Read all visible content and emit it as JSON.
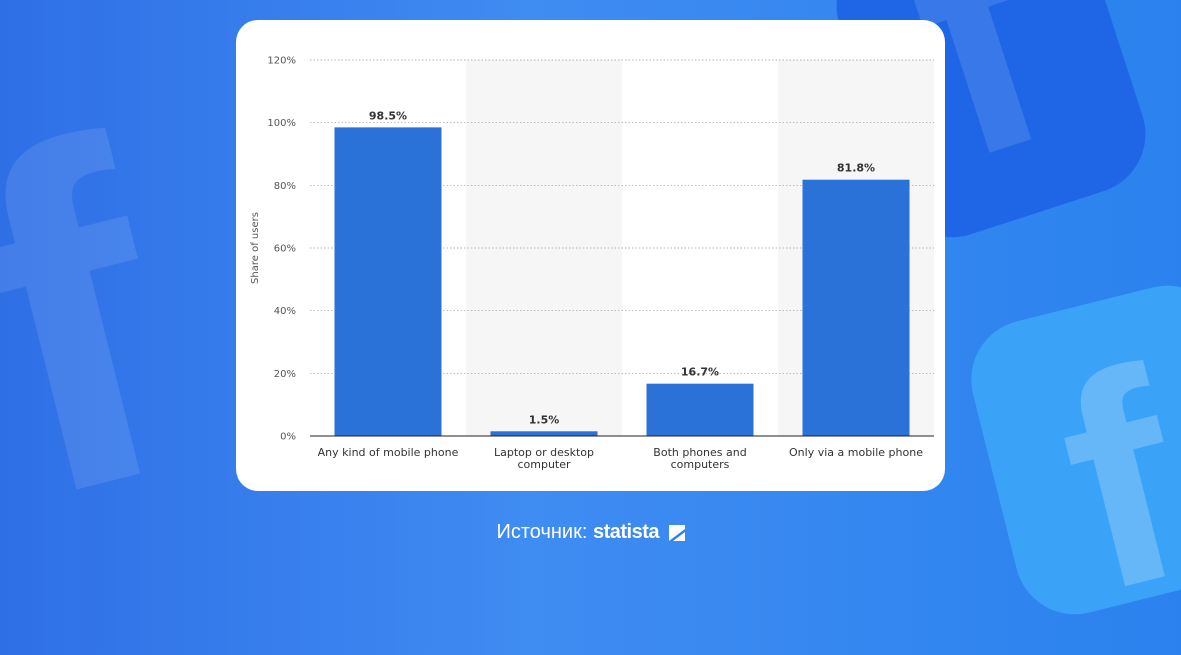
{
  "chart_data": {
    "type": "bar",
    "categories": [
      [
        "Any kind of mobile phone"
      ],
      [
        "Laptop or desktop",
        "computer"
      ],
      [
        "Both phones and",
        "computers"
      ],
      [
        "Only via a mobile phone"
      ]
    ],
    "values": [
      98.5,
      1.5,
      16.7,
      81.8
    ],
    "value_labels": [
      "98.5%",
      "1.5%",
      "16.7%",
      "81.8%"
    ],
    "title": "",
    "xlabel": "",
    "ylabel": "Share of users",
    "ylim": [
      0,
      120
    ],
    "yticks": [
      "0%",
      "20%",
      "40%",
      "60%",
      "80%",
      "100%",
      "120%"
    ],
    "grid": true,
    "bar_color": "#2a72d8"
  },
  "footer": {
    "source_prefix": "Источник:",
    "source_brand": "statista"
  }
}
